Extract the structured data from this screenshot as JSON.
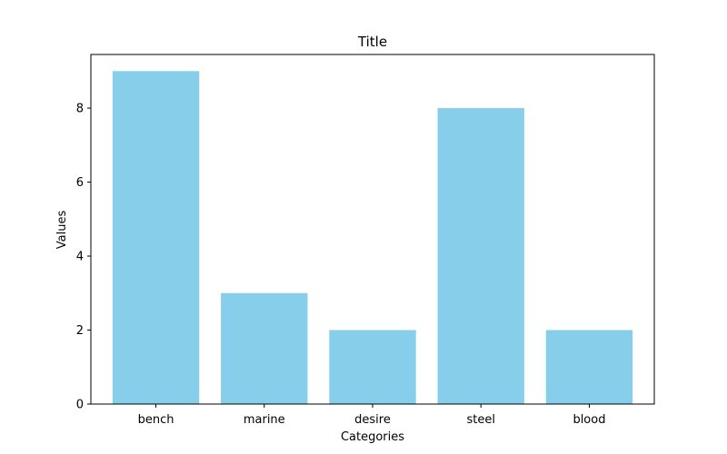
{
  "chart_data": {
    "type": "bar",
    "title": "Title",
    "xlabel": "Categories",
    "ylabel": "Values",
    "categories": [
      "bench",
      "marine",
      "desire",
      "steel",
      "blood"
    ],
    "values": [
      9,
      3,
      2,
      8,
      2
    ],
    "ylim": [
      0,
      9.45
    ],
    "yticks": [
      0,
      2,
      4,
      6,
      8
    ],
    "grid": false,
    "bar_color": "#87ceeb"
  }
}
